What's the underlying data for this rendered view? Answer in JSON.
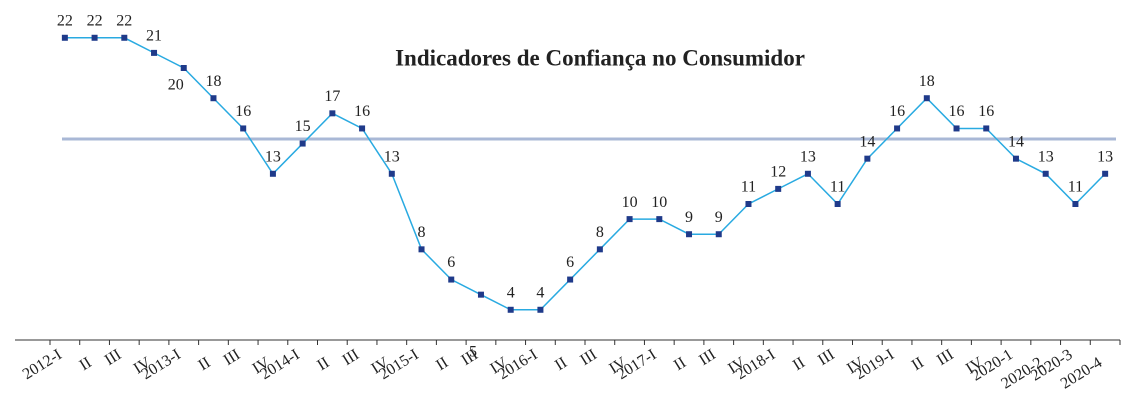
{
  "chart_data": {
    "type": "line",
    "title": "Indicadores de Confiança no Consumidor",
    "categories": [
      "2012-I",
      "II",
      "III",
      "IV",
      "2013-I",
      "II",
      "III",
      "IV",
      "2014-I",
      "II",
      "III",
      "IV",
      "2015-I",
      "II",
      "III",
      "IV",
      "2016-I",
      "II",
      "III",
      "IV",
      "2017-I",
      "II",
      "III",
      "IV",
      "2018-I",
      "II",
      "III",
      "IV",
      "2019-I",
      "II",
      "III",
      "IV",
      "2020-1",
      "2020-2",
      "2020-3",
      "2020-4"
    ],
    "series": [
      {
        "color": "#29aae1",
        "marker_color": "#1f3a8a",
        "values": [
          22,
          22,
          22,
          21,
          20,
          18,
          16,
          13,
          15,
          17,
          16,
          13,
          8,
          6,
          5,
          4,
          4,
          6,
          8,
          10,
          10,
          9,
          9,
          11,
          12,
          13,
          11,
          14,
          16,
          18,
          16,
          16,
          14,
          13,
          11,
          13
        ]
      }
    ],
    "reference_line": {
      "value": 15.3,
      "color": "#a9b8d6"
    },
    "ylim": [
      2,
      24.5
    ]
  }
}
